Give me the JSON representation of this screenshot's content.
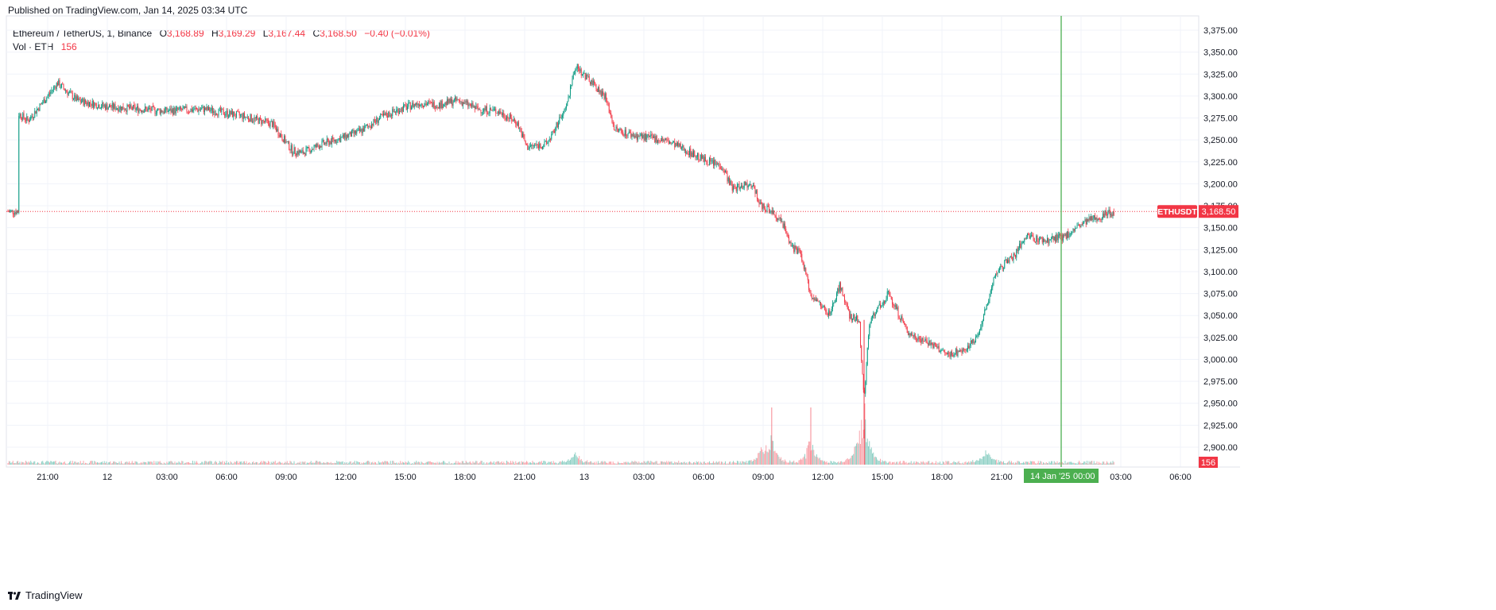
{
  "header": {
    "published": "Published on TradingView.com, Jan 14, 2025 03:34 UTC"
  },
  "legend": {
    "symbol": "Ethereum / TetherUS, 1, Binance",
    "open_label": "O",
    "open": "3,168.89",
    "high_label": "H",
    "high": "3,169.29",
    "low_label": "L",
    "low": "3,167.44",
    "close_label": "C",
    "close": "3,168.50",
    "change": "−0.40 (−0.01%)",
    "vol_label": "Vol · ETH",
    "vol_value": "156"
  },
  "footer": {
    "brand": "TradingView"
  },
  "price_tag": {
    "symbol": "ETHUSDT",
    "value": "3,168.50",
    "color": "#f23645"
  },
  "vol_tag": {
    "value": "156",
    "color": "#f23645"
  },
  "crosshair_time": {
    "date": "14 Jan '25",
    "time": "00:00",
    "color": "#4caf50"
  },
  "colors": {
    "up": "#089981",
    "down": "#f23645",
    "crosshair": "#4caf50",
    "grid": "#f0f3fa"
  },
  "chart_data": {
    "type": "candlestick",
    "symbol": "ETHUSDT",
    "interval": "1",
    "exchange": "Binance",
    "ylim": [
      2875,
      3385
    ],
    "y_ticks": [
      "3,375.00",
      "3,350.00",
      "3,325.00",
      "3,300.00",
      "3,275.00",
      "3,250.00",
      "3,225.00",
      "3,200.00",
      "3,175.00",
      "3,150.00",
      "3,125.00",
      "3,100.00",
      "3,075.00",
      "3,050.00",
      "3,025.00",
      "3,000.00",
      "2,975.00",
      "2,950.00",
      "2,925.00",
      "2,900.00"
    ],
    "x_ticks": [
      "21:00",
      "12",
      "03:00",
      "06:00",
      "09:00",
      "12:00",
      "15:00",
      "18:00",
      "21:00",
      "13",
      "03:00",
      "06:00",
      "09:00",
      "12:00",
      "15:00",
      "18:00",
      "21:00",
      "00:00",
      "03:00",
      "06:00"
    ],
    "last_price": 3168.5,
    "price_path": [
      {
        "t": "2025-01-11T19:30",
        "p": 3280
      },
      {
        "t": "2025-01-11T20:00",
        "p": 3272
      },
      {
        "t": "2025-01-11T21:00",
        "p": 3300
      },
      {
        "t": "2025-01-11T21:30",
        "p": 3315
      },
      {
        "t": "2025-01-11T22:30",
        "p": 3295
      },
      {
        "t": "2025-01-12T00:00",
        "p": 3288
      },
      {
        "t": "2025-01-12T03:00",
        "p": 3283
      },
      {
        "t": "2025-01-12T05:00",
        "p": 3285
      },
      {
        "t": "2025-01-12T07:00",
        "p": 3277
      },
      {
        "t": "2025-01-12T08:30",
        "p": 3268
      },
      {
        "t": "2025-01-12T09:30",
        "p": 3238
      },
      {
        "t": "2025-01-12T10:00",
        "p": 3235
      },
      {
        "t": "2025-01-12T11:00",
        "p": 3245
      },
      {
        "t": "2025-01-12T12:00",
        "p": 3252
      },
      {
        "t": "2025-01-12T13:00",
        "p": 3260
      },
      {
        "t": "2025-01-12T14:00",
        "p": 3275
      },
      {
        "t": "2025-01-12T15:00",
        "p": 3285
      },
      {
        "t": "2025-01-12T16:00",
        "p": 3292
      },
      {
        "t": "2025-01-12T17:00",
        "p": 3290
      },
      {
        "t": "2025-01-12T18:00",
        "p": 3295
      },
      {
        "t": "2025-01-12T19:00",
        "p": 3285
      },
      {
        "t": "2025-01-12T20:00",
        "p": 3283
      },
      {
        "t": "2025-01-12T21:00",
        "p": 3270
      },
      {
        "t": "2025-01-12T21:30",
        "p": 3242
      },
      {
        "t": "2025-01-12T22:30",
        "p": 3245
      },
      {
        "t": "2025-01-12T23:30",
        "p": 3285
      },
      {
        "t": "2025-01-13T00:00",
        "p": 3335
      },
      {
        "t": "2025-01-13T00:30",
        "p": 3322
      },
      {
        "t": "2025-01-13T01:30",
        "p": 3300
      },
      {
        "t": "2025-01-13T02:00",
        "p": 3262
      },
      {
        "t": "2025-01-13T03:00",
        "p": 3255
      },
      {
        "t": "2025-01-13T04:30",
        "p": 3250
      },
      {
        "t": "2025-01-13T05:30",
        "p": 3240
      },
      {
        "t": "2025-01-13T06:30",
        "p": 3228
      },
      {
        "t": "2025-01-13T07:30",
        "p": 3220
      },
      {
        "t": "2025-01-13T08:00",
        "p": 3195
      },
      {
        "t": "2025-01-13T09:00",
        "p": 3200
      },
      {
        "t": "2025-01-13T09:30",
        "p": 3175
      },
      {
        "t": "2025-01-13T10:30",
        "p": 3160
      },
      {
        "t": "2025-01-13T11:00",
        "p": 3130
      },
      {
        "t": "2025-01-13T11:30",
        "p": 3120
      },
      {
        "t": "2025-01-13T12:00",
        "p": 3075
      },
      {
        "t": "2025-01-13T13:00",
        "p": 3050
      },
      {
        "t": "2025-01-13T13:30",
        "p": 3085
      },
      {
        "t": "2025-01-13T14:00",
        "p": 3050
      },
      {
        "t": "2025-01-13T14:30",
        "p": 3045
      },
      {
        "t": "2025-01-13T14:45",
        "p": 2950
      },
      {
        "t": "2025-01-13T15:00",
        "p": 3040
      },
      {
        "t": "2025-01-13T15:30",
        "p": 3060
      },
      {
        "t": "2025-01-13T16:00",
        "p": 3075
      },
      {
        "t": "2025-01-13T17:00",
        "p": 3030
      },
      {
        "t": "2025-01-13T18:00",
        "p": 3020
      },
      {
        "t": "2025-01-13T19:00",
        "p": 3005
      },
      {
        "t": "2025-01-13T20:00",
        "p": 3012
      },
      {
        "t": "2025-01-13T20:30",
        "p": 3025
      },
      {
        "t": "2025-01-13T21:00",
        "p": 3060
      },
      {
        "t": "2025-01-13T21:30",
        "p": 3100
      },
      {
        "t": "2025-01-13T22:30",
        "p": 3120
      },
      {
        "t": "2025-01-13T23:00",
        "p": 3140
      },
      {
        "t": "2025-01-14T00:00",
        "p": 3135
      },
      {
        "t": "2025-01-14T01:00",
        "p": 3140
      },
      {
        "t": "2025-01-14T02:00",
        "p": 3155
      },
      {
        "t": "2025-01-14T03:00",
        "p": 3165
      },
      {
        "t": "2025-01-14T03:34",
        "p": 3168.5
      }
    ],
    "volume_spikes": [
      {
        "t": "2025-01-13T00:00",
        "v": 45
      },
      {
        "t": "2025-01-13T09:30",
        "v": 55
      },
      {
        "t": "2025-01-13T10:00",
        "v": 110
      },
      {
        "t": "2025-01-13T12:00",
        "v": 110
      },
      {
        "t": "2025-01-13T14:30",
        "v": 75
      },
      {
        "t": "2025-01-13T14:45",
        "v": 230
      },
      {
        "t": "2025-01-13T21:00",
        "v": 60
      }
    ]
  }
}
